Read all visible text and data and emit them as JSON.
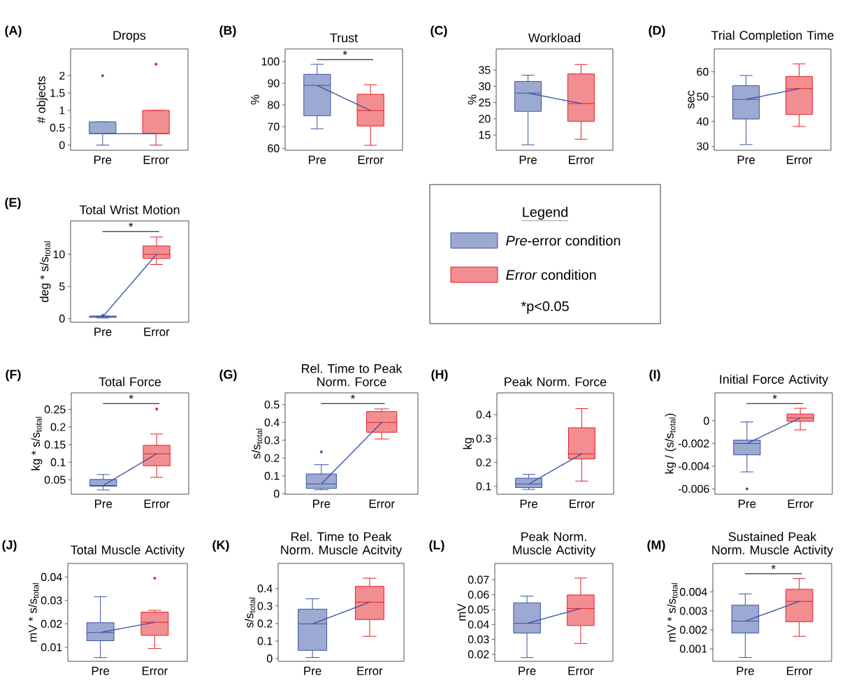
{
  "chart_data": [
    {
      "type": "box",
      "title": "Drops",
      "ylabel": "# objects",
      "categories": [
        "Pre",
        "Error"
      ],
      "colors": [
        "#3a53a4",
        "#e41e26"
      ],
      "ylim": [
        -0.15,
        2.77
      ],
      "yticks": [
        0,
        0.5,
        1,
        1.5,
        2
      ],
      "annotations": [
        "(A)"
      ],
      "boxes": [
        {
          "low": 0,
          "q1": 0.33,
          "median": 0.33,
          "q3": 0.67,
          "high": 0.67,
          "outliers": [
            2
          ]
        },
        {
          "low": 0,
          "q1": 0.33,
          "median": 0.33,
          "q3": 1.0,
          "high": 1.0,
          "outliers": [
            2.33
          ]
        }
      ],
      "series": [
        {
          "type": "line",
          "color": "#3a53a4",
          "line_style": "dashed",
          "values": [
            0.33,
            0.33
          ]
        }
      ]
    },
    {
      "type": "box",
      "title": "Trust",
      "ylabel": "%",
      "categories": [
        "Pre",
        "Error"
      ],
      "colors": [
        "#3a53a4",
        "#e41e26"
      ],
      "ylim": [
        59.1,
        105.8
      ],
      "yticks": [
        60,
        70,
        80,
        90,
        100
      ],
      "annotations": [
        "(B)",
        "*"
      ],
      "boxes": [
        {
          "low": 69.0,
          "q1": 75.0,
          "median": 89.0,
          "q3": 94.1,
          "high": 98.7
        },
        {
          "low": 61.4,
          "q1": 70.3,
          "median": 77.4,
          "q3": 84.9,
          "high": 89.3
        }
      ],
      "series": [
        {
          "type": "line",
          "color": "#3a53a4",
          "line_style": "dashed",
          "values": [
            89.0,
            77.4
          ]
        }
      ]
    },
    {
      "type": "box",
      "title": "Workload",
      "ylabel": "%",
      "categories": [
        "Pre",
        "Error"
      ],
      "colors": [
        "#3a53a4",
        "#e41e26"
      ],
      "ylim": [
        10.3,
        41.5
      ],
      "yticks": [
        15,
        20,
        25,
        30,
        35
      ],
      "annotations": [
        "(C)"
      ],
      "boxes": [
        {
          "low": 12.0,
          "q1": 22.3,
          "median": 27.9,
          "q3": 31.5,
          "high": 33.4
        },
        {
          "low": 13.7,
          "q1": 19.2,
          "median": 24.7,
          "q3": 33.8,
          "high": 36.7
        }
      ],
      "series": [
        {
          "type": "line",
          "color": "#3a53a4",
          "line_style": "dashed",
          "values": [
            27.9,
            24.7
          ]
        }
      ]
    },
    {
      "type": "box",
      "title": "Trial Completion Time",
      "ylabel": "sec",
      "categories": [
        "Pre",
        "Error"
      ],
      "colors": [
        "#3a53a4",
        "#e41e26"
      ],
      "ylim": [
        28.4,
        69.2
      ],
      "yticks": [
        30,
        40,
        50,
        60
      ],
      "annotations": [
        "(D)"
      ],
      "boxes": [
        {
          "low": 30.7,
          "q1": 41.0,
          "median": 48.9,
          "q3": 54.4,
          "high": 58.5
        },
        {
          "low": 38.0,
          "q1": 42.8,
          "median": 53.2,
          "q3": 58.1,
          "high": 63.2
        }
      ],
      "series": [
        {
          "type": "line",
          "color": "#3a53a4",
          "line_style": "dashed",
          "values": [
            48.9,
            53.2
          ]
        }
      ]
    },
    {
      "type": "box",
      "title": "Total Wrist Motion",
      "ylabel": "deg * s/s$_{total}$",
      "categories": [
        "Pre",
        "Error"
      ],
      "colors": [
        "#3a53a4",
        "#e41e26"
      ],
      "ylim": [
        -0.57,
        15.2
      ],
      "yticks": [
        0,
        5,
        10
      ],
      "annotations": [
        "(E)",
        "*"
      ],
      "boxes": [
        {
          "low": 0.1,
          "q1": 0.2,
          "median": 0.3,
          "q3": 0.4,
          "high": 0.4,
          "outliers": [
            0.5
          ]
        },
        {
          "low": 8.4,
          "q1": 9.35,
          "median": 10.0,
          "q3": 11.3,
          "high": 12.7
        }
      ],
      "series": [
        {
          "type": "line",
          "color": "#3a53a4",
          "line_style": "dashed",
          "values": [
            0.3,
            10.0
          ]
        }
      ]
    },
    {
      "type": "other",
      "title": "Legend",
      "annotations": [
        "*p<0.05"
      ],
      "series": [
        {
          "name": "*Pre*-error condition",
          "color": "#3a53a4"
        },
        {
          "name": "*Error* condition",
          "color": "#e41e26"
        }
      ]
    },
    {
      "type": "box",
      "title": "Total Force",
      "ylabel": "kg * s/s$_{total}$",
      "categories": [
        "Pre",
        "Error"
      ],
      "colors": [
        "#3a53a4",
        "#e41e26"
      ],
      "ylim": [
        0.009,
        0.297
      ],
      "yticks": [
        0.05,
        0.1,
        0.15,
        0.2,
        0.25
      ],
      "annotations": [
        "(F)",
        "*"
      ],
      "boxes": [
        {
          "low": 0.021,
          "q1": 0.032,
          "median": 0.034,
          "q3": 0.051,
          "high": 0.065
        },
        {
          "low": 0.057,
          "q1": 0.09,
          "median": 0.124,
          "q3": 0.148,
          "high": 0.18,
          "outliers": [
            0.251
          ]
        }
      ],
      "series": [
        {
          "type": "line",
          "color": "#3a53a4",
          "line_style": "dashed",
          "values": [
            0.034,
            0.124
          ]
        }
      ]
    },
    {
      "type": "box",
      "title": "Rel. Time to Peak Norm. Force",
      "ylabel": "s/s$_{total}$",
      "categories": [
        "Pre",
        "Error"
      ],
      "colors": [
        "#3a53a4",
        "#e41e26"
      ],
      "ylim": [
        -0.003,
        0.566
      ],
      "yticks": [
        0,
        0.1,
        0.2,
        0.3,
        0.4,
        0.5
      ],
      "annotations": [
        "(G)",
        "*"
      ],
      "boxes": [
        {
          "low": 0.022,
          "q1": 0.03,
          "median": 0.055,
          "q3": 0.111,
          "high": 0.163,
          "outliers": [
            0.235
          ]
        },
        {
          "low": 0.307,
          "q1": 0.345,
          "median": 0.4,
          "q3": 0.461,
          "high": 0.476
        }
      ],
      "series": [
        {
          "type": "line",
          "color": "#3a53a4",
          "line_style": "dashed",
          "values": [
            0.055,
            0.4
          ]
        }
      ]
    },
    {
      "type": "box",
      "title": "Peak Norm. Force",
      "ylabel": "kg",
      "categories": [
        "Pre",
        "Error"
      ],
      "colors": [
        "#3a53a4",
        "#e41e26"
      ],
      "ylim": [
        0.067,
        0.491
      ],
      "yticks": [
        0.1,
        0.2,
        0.3,
        0.4
      ],
      "annotations": [
        "(H)"
      ],
      "boxes": [
        {
          "low": 0.087,
          "q1": 0.095,
          "median": 0.11,
          "q3": 0.134,
          "high": 0.15
        },
        {
          "low": 0.122,
          "q1": 0.215,
          "median": 0.236,
          "q3": 0.345,
          "high": 0.425
        }
      ],
      "series": [
        {
          "type": "line",
          "color": "#3a53a4",
          "line_style": "dashed",
          "values": [
            0.11,
            0.236
          ]
        }
      ]
    },
    {
      "type": "box",
      "title": "Initial Force Activity",
      "ylabel": "kg /  (s/s$_{total}$)",
      "categories": [
        "Pre",
        "Error"
      ],
      "colors": [
        "#3a53a4",
        "#e41e26"
      ],
      "ylim": [
        -0.00647,
        0.00246
      ],
      "yticks": [
        0,
        -0.002,
        -0.004,
        -0.006
      ],
      "annotations": [
        "(I)",
        "*"
      ],
      "boxes": [
        {
          "low": -0.0045,
          "q1": -0.003,
          "median": -0.002,
          "q3": -0.0017,
          "high": -0.0001,
          "outliers": [
            -0.006
          ]
        },
        {
          "low": -0.0008,
          "q1": -5e-05,
          "median": 0.00025,
          "q3": 0.0006,
          "high": 0.0011
        }
      ],
      "series": [
        {
          "type": "line",
          "color": "#3a53a4",
          "line_style": "dashed",
          "values": [
            -0.002,
            0.00025
          ]
        }
      ]
    },
    {
      "type": "box",
      "title": "Total Muscle Activity",
      "ylabel": "mV * s/s$_{total}$",
      "categories": [
        "Pre",
        "Error"
      ],
      "colors": [
        "#3a53a4",
        "#e41e26"
      ],
      "ylim": [
        0.004,
        0.0458
      ],
      "yticks": [
        0.01,
        0.02,
        0.03,
        0.04
      ],
      "annotations": [
        "(J)"
      ],
      "boxes": [
        {
          "low": 0.0056,
          "q1": 0.0128,
          "median": 0.0163,
          "q3": 0.0205,
          "high": 0.0316
        },
        {
          "low": 0.0095,
          "q1": 0.0151,
          "median": 0.0207,
          "q3": 0.025,
          "high": 0.0258,
          "outliers": [
            0.0395
          ]
        }
      ],
      "series": [
        {
          "type": "line",
          "color": "#3a53a4",
          "line_style": "dashed",
          "values": [
            0.0163,
            0.0207
          ]
        }
      ]
    },
    {
      "type": "box",
      "title": "Rel. Time to Peak Norm. Muscle Acitvity",
      "ylabel": "s/s$_{total}$",
      "categories": [
        "Pre",
        "Error"
      ],
      "colors": [
        "#3a53a4",
        "#e41e26"
      ],
      "ylim": [
        -0.016,
        0.543
      ],
      "yticks": [
        0,
        0.1,
        0.2,
        0.3,
        0.4
      ],
      "annotations": [
        "(K)"
      ],
      "boxes": [
        {
          "low": 0.006,
          "q1": 0.047,
          "median": 0.198,
          "q3": 0.282,
          "high": 0.341
        },
        {
          "low": 0.127,
          "q1": 0.223,
          "median": 0.322,
          "q3": 0.412,
          "high": 0.459
        }
      ],
      "series": [
        {
          "type": "line",
          "color": "#3a53a4",
          "line_style": "dashed",
          "values": [
            0.198,
            0.322
          ]
        }
      ]
    },
    {
      "type": "box",
      "title": "Peak Norm. Muscle Activity",
      "ylabel": "mV",
      "categories": [
        "Pre",
        "Error"
      ],
      "colors": [
        "#3a53a4",
        "#e41e26"
      ],
      "ylim": [
        0.0153,
        0.0809
      ],
      "yticks": [
        0.02,
        0.03,
        0.04,
        0.05,
        0.06,
        0.07
      ],
      "annotations": [
        "(L)"
      ],
      "boxes": [
        {
          "low": 0.0178,
          "q1": 0.0342,
          "median": 0.0408,
          "q3": 0.0545,
          "high": 0.059
        },
        {
          "low": 0.0273,
          "q1": 0.0393,
          "median": 0.0507,
          "q3": 0.0598,
          "high": 0.0711
        }
      ],
      "series": [
        {
          "type": "line",
          "color": "#3a53a4",
          "line_style": "dashed",
          "values": [
            0.0408,
            0.0507
          ]
        }
      ]
    },
    {
      "type": "box",
      "title": "Sustained Peak Norm. Muscle Activity",
      "ylabel": "mV *  s/s$_{total}$",
      "categories": [
        "Pre",
        "Error"
      ],
      "colors": [
        "#3a53a4",
        "#e41e26"
      ],
      "ylim": [
        0.00034,
        0.0055
      ],
      "yticks": [
        0.001,
        0.002,
        0.003,
        0.004
      ],
      "annotations": [
        "(M)",
        "*"
      ],
      "boxes": [
        {
          "low": 0.00054,
          "q1": 0.00183,
          "median": 0.00246,
          "q3": 0.0033,
          "high": 0.00389
        },
        {
          "low": 0.00166,
          "q1": 0.00243,
          "median": 0.0035,
          "q3": 0.00414,
          "high": 0.0047
        }
      ],
      "series": [
        {
          "type": "line",
          "color": "#3a53a4",
          "line_style": "dashed",
          "values": [
            0.00246,
            0.0035
          ]
        }
      ]
    }
  ]
}
